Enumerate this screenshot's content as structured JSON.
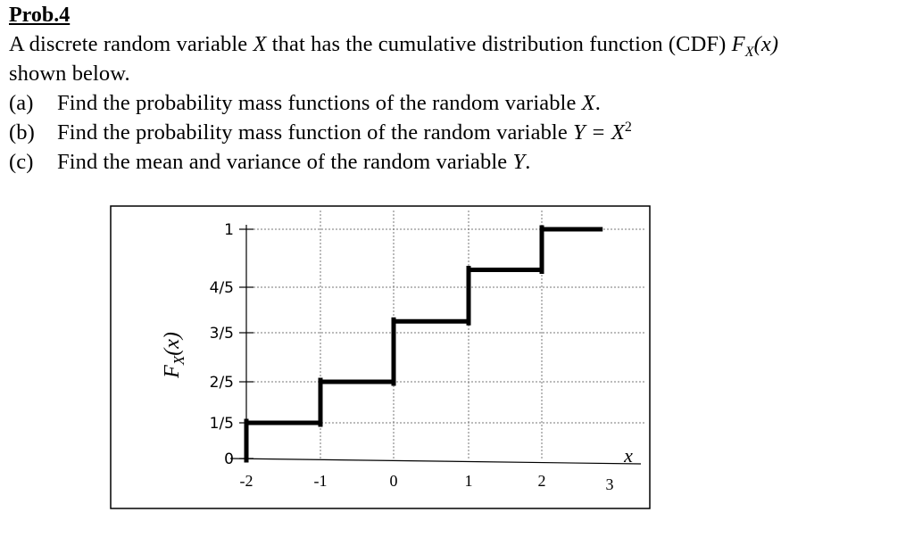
{
  "problem": {
    "title": "Prob.4",
    "intro_line1_pre": "A discrete random variable ",
    "intro_var": "X",
    "intro_line1_mid": " that has the cumulative distribution function (CDF) ",
    "intro_func": "F",
    "intro_func_sub": "X",
    "intro_func_arg": "(x)",
    "intro_line2": "shown below.",
    "parts": [
      {
        "label": "(a)",
        "text": "Find the probability mass functions of the random variable ",
        "var": "X",
        "tail": "."
      },
      {
        "label": "(b)",
        "text": "Find the probability mass function of the random variable ",
        "var": "Y = X",
        "sup": "2",
        "tail": ""
      },
      {
        "label": "(c)",
        "text": "Find the mean and variance of the random variable ",
        "var": "Y",
        "tail": "."
      }
    ]
  },
  "chart_data": {
    "type": "line",
    "subtype": "step-cdf",
    "ylabel": "F_X(x)",
    "xlabel": "x",
    "x_ticks": [
      "-2",
      "-1",
      "0",
      "1",
      "2",
      "3"
    ],
    "y_ticks": [
      "0",
      "1/5",
      "2/5",
      "3/5",
      "4/5",
      "1"
    ],
    "xlim": [
      -2,
      3
    ],
    "ylim": [
      0,
      1
    ],
    "grid": true,
    "steps": [
      {
        "x_start": -2,
        "x_end": -1,
        "y": 0.2
      },
      {
        "x_start": -1,
        "x_end": 0,
        "y": 0.4
      },
      {
        "x_start": 0,
        "x_end": 1,
        "y": 0.65
      },
      {
        "x_start": 1,
        "x_end": 2,
        "y": 0.86
      },
      {
        "x_start": 2,
        "x_end": 2.9,
        "y": 1.0
      }
    ],
    "jumps_at": [
      -2,
      -1,
      0,
      1,
      2
    ]
  }
}
